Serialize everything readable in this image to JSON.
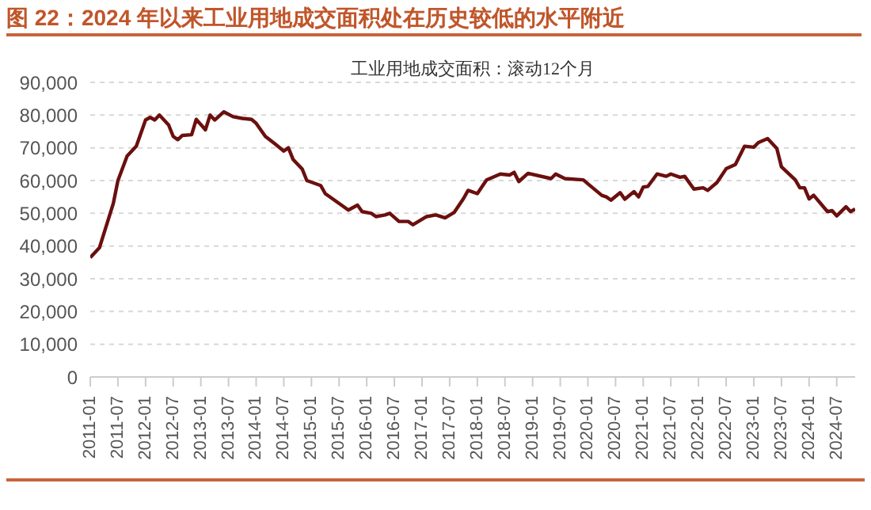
{
  "chart_data": {
    "type": "line",
    "title": "图 22：2024 年以来工业用地成交面积处在历史较低的水平附近",
    "subtitle": "工业用地成交面积：滚动12个月",
    "x": [
      "2011-01",
      "2011-03",
      "2011-04",
      "2011-06",
      "2011-07",
      "2011-09",
      "2011-11",
      "2012-01",
      "2012-02",
      "2012-03",
      "2012-04",
      "2012-06",
      "2012-07",
      "2012-08",
      "2012-09",
      "2012-11",
      "2012-12",
      "2013-02",
      "2013-03",
      "2013-04",
      "2013-06",
      "2013-08",
      "2013-10",
      "2013-12",
      "2014-01",
      "2014-03",
      "2014-05",
      "2014-07",
      "2014-08",
      "2014-09",
      "2014-11",
      "2014-12",
      "2015-03",
      "2015-04",
      "2015-06",
      "2015-08",
      "2015-09",
      "2015-11",
      "2015-12",
      "2016-02",
      "2016-03",
      "2016-05",
      "2016-06",
      "2016-08",
      "2016-10",
      "2016-11",
      "2017-02",
      "2017-04",
      "2017-06",
      "2017-08",
      "2017-10",
      "2017-11",
      "2018-01",
      "2018-03",
      "2018-06",
      "2018-08",
      "2018-09",
      "2018-10",
      "2018-12",
      "2019-05",
      "2019-06",
      "2019-08",
      "2019-12",
      "2020-01",
      "2020-04",
      "2020-05",
      "2020-06",
      "2020-08",
      "2020-09",
      "2020-11",
      "2020-12",
      "2021-01",
      "2021-02",
      "2021-04",
      "2021-06",
      "2021-07",
      "2021-09",
      "2021-10",
      "2021-12",
      "2022-02",
      "2022-03",
      "2022-05",
      "2022-07",
      "2022-09",
      "2022-11",
      "2023-01",
      "2023-02",
      "2023-04",
      "2023-06",
      "2023-07",
      "2023-10",
      "2023-11",
      "2023-12",
      "2024-01",
      "2024-02",
      "2024-05",
      "2024-06",
      "2024-07",
      "2024-09",
      "2024-10",
      "2024-11"
    ],
    "series": [
      {
        "color": "#6b0f0f",
        "values": [
          36500,
          39500,
          44000,
          53000,
          60000,
          67500,
          70500,
          78500,
          79300,
          78500,
          80000,
          77000,
          73500,
          72500,
          73800,
          74000,
          78700,
          75500,
          80000,
          78500,
          81000,
          79500,
          79000,
          78700,
          77500,
          73500,
          71300,
          69000,
          70000,
          66500,
          63500,
          60000,
          58500,
          56000,
          54000,
          52000,
          51000,
          52500,
          50500,
          50000,
          49000,
          49500,
          50000,
          47500,
          47500,
          46500,
          49000,
          49500,
          48600,
          50300,
          54500,
          57000,
          56000,
          60200,
          62000,
          61700,
          62500,
          59700,
          62200,
          60600,
          62000,
          60600,
          60200,
          59000,
          55500,
          55000,
          54000,
          56300,
          54300,
          56600,
          55000,
          58000,
          58200,
          62000,
          61300,
          62000,
          61000,
          61300,
          57400,
          57800,
          57000,
          59400,
          63600,
          64900,
          70500,
          70200,
          71600,
          72800,
          69800,
          64200,
          60200,
          57800,
          57800,
          54400,
          55500,
          50500,
          50800,
          49200,
          52000,
          50500,
          51300
        ]
      }
    ],
    "xlim": [
      "2011-01",
      "2024-11"
    ],
    "xticks": [
      "2011-01",
      "2011-07",
      "2012-01",
      "2012-07",
      "2013-01",
      "2013-07",
      "2014-01",
      "2014-07",
      "2015-01",
      "2015-07",
      "2016-01",
      "2016-07",
      "2017-01",
      "2017-07",
      "2018-01",
      "2018-07",
      "2019-01",
      "2019-07",
      "2020-01",
      "2020-07",
      "2021-01",
      "2021-07",
      "2022-01",
      "2022-07",
      "2023-01",
      "2023-07",
      "2024-01",
      "2024-07"
    ],
    "ylim": [
      0,
      90000
    ],
    "yticks": [
      0,
      {
        "value": 10000,
        "label": "10,000"
      },
      {
        "value": 20000,
        "label": "20,000"
      },
      {
        "value": 30000,
        "label": "30,000"
      },
      {
        "value": 40000,
        "label": "40,000"
      },
      {
        "value": 50000,
        "label": "50,000"
      },
      {
        "value": 60000,
        "label": "60,000"
      },
      {
        "value": 70000,
        "label": "70,000"
      },
      {
        "value": 80000,
        "label": "80,000"
      },
      {
        "value": 90000,
        "label": "90,000"
      }
    ],
    "grid": "y",
    "legend": false,
    "marker": "none",
    "line_style": "solid"
  }
}
